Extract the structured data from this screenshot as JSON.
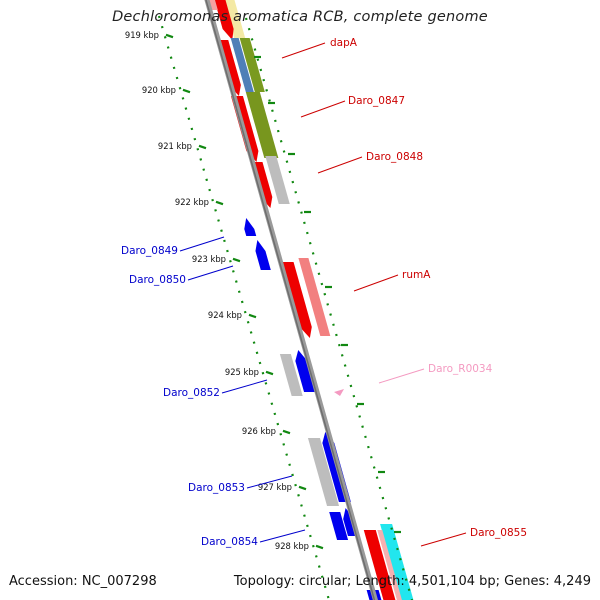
{
  "title": "Dechloromonas aromatica RCB, complete genome",
  "footer": {
    "accession": "Accession: NC_007298",
    "topology": "Topology: circular; Length: 4,501,104 bp; Genes: 4,249"
  },
  "colors": {
    "backbone": "#8a8a8a",
    "ticks": "#118811",
    "tick_text": "#111111",
    "label_red": "#cc0000",
    "label_blue": "#0000cc",
    "label_pink": "#f49ac1"
  },
  "ticks": [
    "919 kbp",
    "920 kbp",
    "921 kbp",
    "922 kbp",
    "923 kbp",
    "924 kbp",
    "925 kbp",
    "926 kbp",
    "927 kbp",
    "928 kbp"
  ],
  "gene_labels": [
    {
      "text": "dapA",
      "color": "red"
    },
    {
      "text": "Daro_0847",
      "color": "red"
    },
    {
      "text": "Daro_0848",
      "color": "red"
    },
    {
      "text": "Daro_0849",
      "color": "blue"
    },
    {
      "text": "Daro_0850",
      "color": "blue"
    },
    {
      "text": "rumA",
      "color": "red"
    },
    {
      "text": "Daro_R0034",
      "color": "pink"
    },
    {
      "text": "Daro_0852",
      "color": "blue"
    },
    {
      "text": "Daro_0853",
      "color": "blue"
    },
    {
      "text": "Daro_0854",
      "color": "blue"
    },
    {
      "text": "Daro_0855",
      "color": "red"
    }
  ]
}
